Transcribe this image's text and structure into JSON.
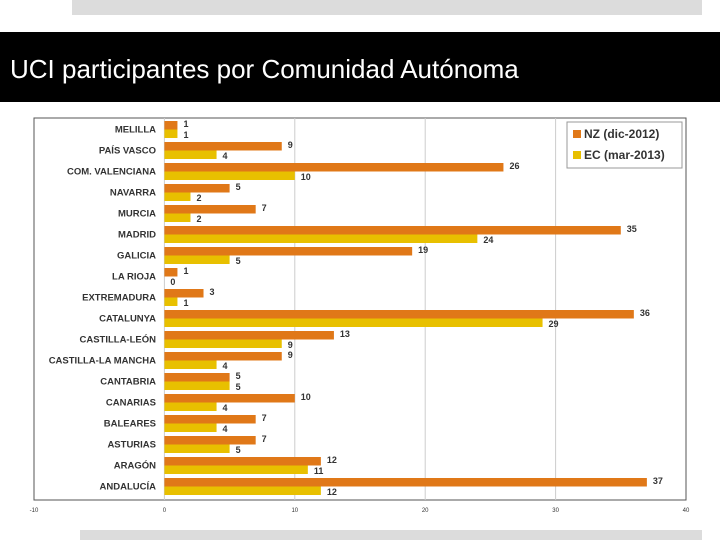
{
  "slide": {
    "title": "UCI participantes por Comunidad Autónoma"
  },
  "colors": {
    "nz": "#e07818",
    "ec": "#e8c000",
    "grid": "#cccccc",
    "frame": "#555555"
  },
  "chart_data": {
    "type": "bar",
    "orientation": "horizontal",
    "title": "",
    "xlabel": "",
    "ylabel": "",
    "xlim": [
      -10,
      40
    ],
    "xticks": [
      "-10",
      "0",
      "10",
      "20",
      "30",
      "40"
    ],
    "grid": true,
    "legend_position": "top-right",
    "categories": [
      "MELILLA",
      "PAÍS VASCO",
      "COM. VALENCIANA",
      "NAVARRA",
      "MURCIA",
      "MADRID",
      "GALICIA",
      "LA RIOJA",
      "EXTREMADURA",
      "CATALUNYA",
      "CASTILLA-LEÓN",
      "CASTILLA-LA MANCHA",
      "CANTABRIA",
      "CANARIAS",
      "BALEARES",
      "ASTURIAS",
      "ARAGÓN",
      "ANDALUCÍA"
    ],
    "series": [
      {
        "name": "NZ (dic-2012)",
        "values": [
          1,
          9,
          26,
          5,
          7,
          35,
          19,
          1,
          3,
          36,
          13,
          9,
          5,
          10,
          7,
          7,
          12,
          37
        ]
      },
      {
        "name": "EC (mar-2013)",
        "values": [
          1,
          4,
          10,
          2,
          2,
          24,
          5,
          0,
          1,
          29,
          9,
          4,
          5,
          4,
          4,
          5,
          11,
          12
        ]
      }
    ]
  }
}
